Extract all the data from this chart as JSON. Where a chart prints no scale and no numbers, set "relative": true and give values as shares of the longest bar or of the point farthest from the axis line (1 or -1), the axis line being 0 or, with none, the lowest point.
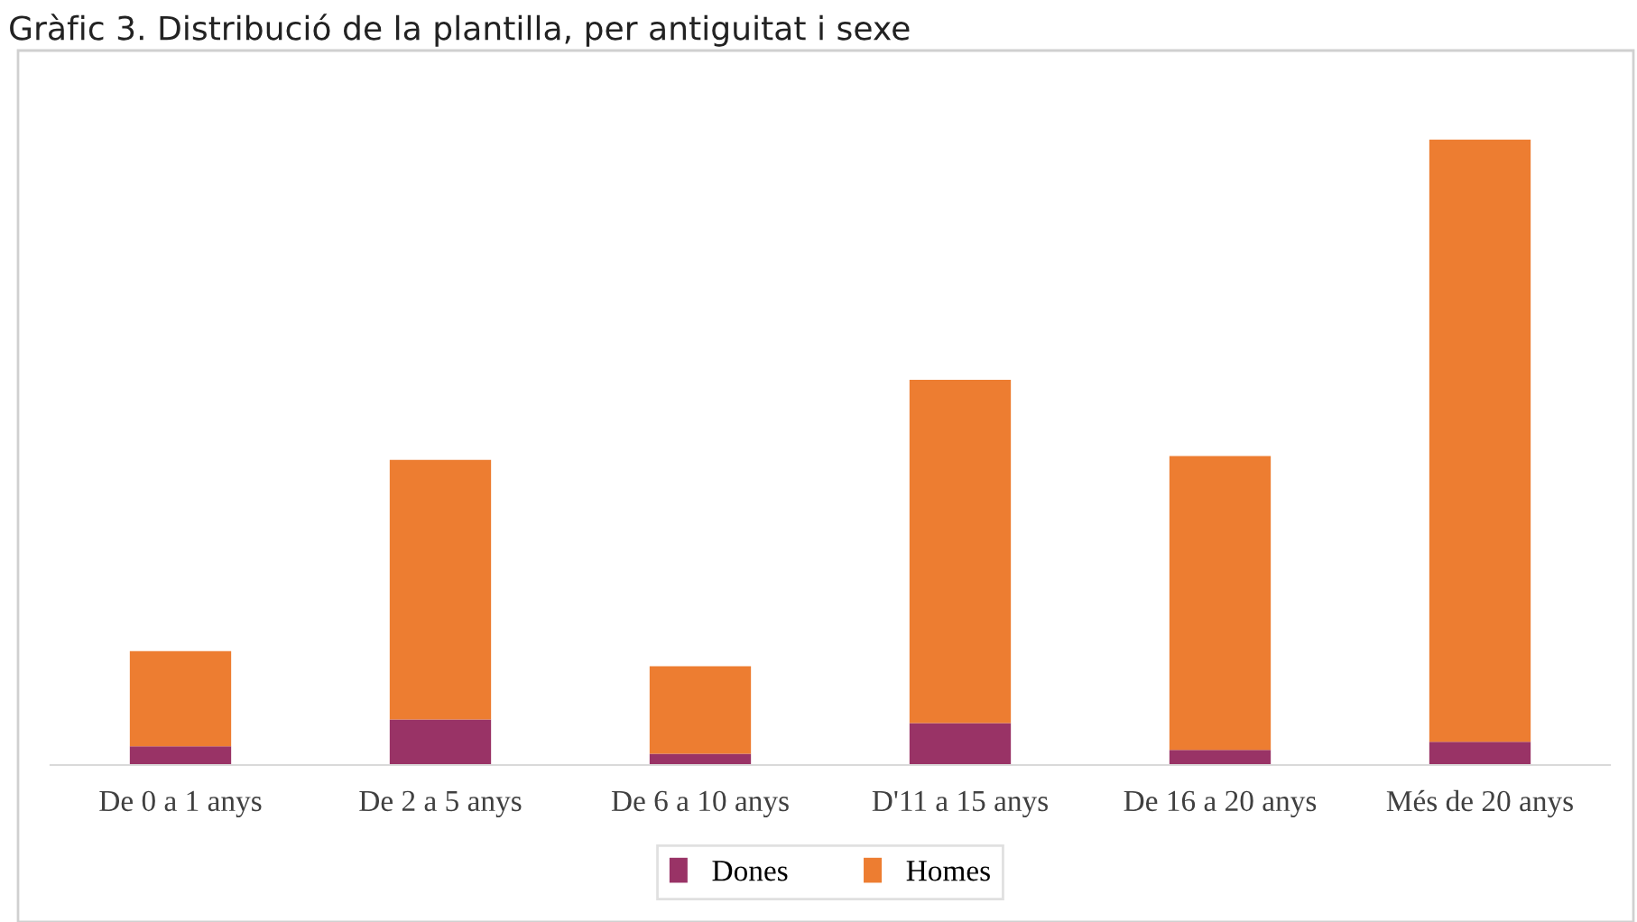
{
  "chart_data": {
    "type": "bar",
    "title": "Gràfic 3. Distribució de la plantilla, per antiguitat i sexe",
    "categories": [
      "De 0 a 1 anys",
      "De 2 a 5 anys",
      "De 6 a 10 anys",
      "D'11 a 15 anys",
      "De 16 a 20 anys",
      "Més de 20 anys"
    ],
    "series": [
      {
        "name": "Dones",
        "color": "#993366",
        "values": [
          0.03,
          0.073,
          0.018,
          0.067,
          0.024,
          0.037
        ]
      },
      {
        "name": "Homes",
        "color": "#ed7d31",
        "values": [
          0.152,
          0.415,
          0.14,
          0.549,
          0.47,
          0.963
        ]
      }
    ],
    "stacked": true,
    "relative": true,
    "grid": false,
    "legend": "bottom"
  }
}
